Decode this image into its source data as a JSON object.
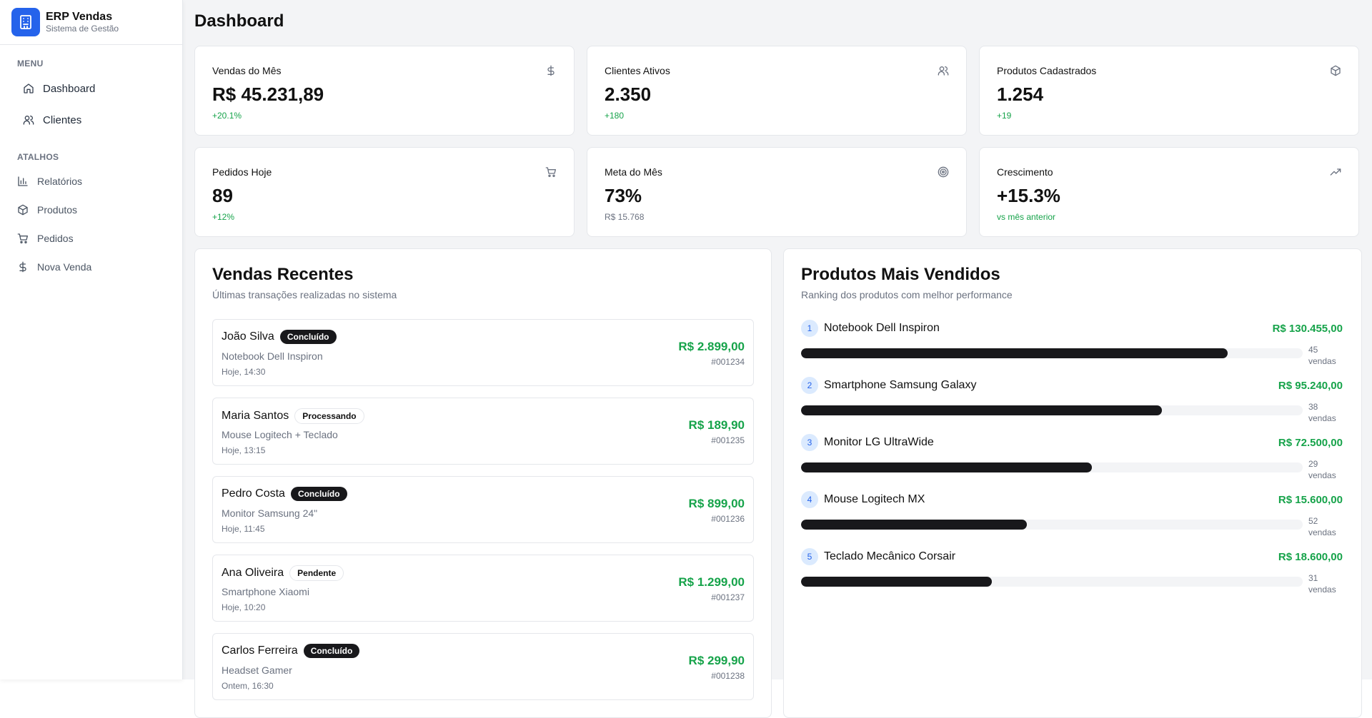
{
  "brand": {
    "title": "ERP Vendas",
    "subtitle": "Sistema de Gestão"
  },
  "sidebar": {
    "menu_label": "MENU",
    "menu_items": [
      {
        "label": "Dashboard",
        "icon": "home-icon"
      },
      {
        "label": "Clientes",
        "icon": "users-icon"
      }
    ],
    "shortcuts_label": "ATALHOS",
    "shortcut_items": [
      {
        "label": "Relatórios",
        "icon": "bar-chart-icon"
      },
      {
        "label": "Produtos",
        "icon": "box-icon"
      },
      {
        "label": "Pedidos",
        "icon": "cart-icon"
      },
      {
        "label": "Nova Venda",
        "icon": "dollar-icon"
      }
    ]
  },
  "page": {
    "title": "Dashboard"
  },
  "stats": [
    {
      "label": "Vendas do Mês",
      "value": "R$ 45.231,89",
      "change": "+20.1%",
      "icon": "dollar-icon"
    },
    {
      "label": "Clientes Ativos",
      "value": "2.350",
      "change": "+180",
      "icon": "users-icon"
    },
    {
      "label": "Produtos Cadastrados",
      "value": "1.254",
      "change": "+19",
      "icon": "box-icon"
    },
    {
      "label": "Pedidos Hoje",
      "value": "89",
      "change": "+12%",
      "icon": "cart-icon"
    },
    {
      "label": "Meta do Mês",
      "value": "73%",
      "change": "R$ 15.768",
      "icon": "target-icon"
    },
    {
      "label": "Crescimento",
      "value": "+15.3%",
      "change": "vs mês anterior",
      "icon": "trending-up-icon"
    }
  ],
  "recent_sales": {
    "title": "Vendas Recentes",
    "subtitle": "Últimas transações realizadas no sistema",
    "items": [
      {
        "customer": "João Silva",
        "status": "Concluído",
        "product": "Notebook Dell Inspiron",
        "time": "Hoje, 14:30",
        "amount": "R$ 2.899,00",
        "id": "#001234"
      },
      {
        "customer": "Maria Santos",
        "status": "Processando",
        "product": "Mouse Logitech + Teclado",
        "time": "Hoje, 13:15",
        "amount": "R$ 189,90",
        "id": "#001235"
      },
      {
        "customer": "Pedro Costa",
        "status": "Concluído",
        "product": "Monitor Samsung 24\"",
        "time": "Hoje, 11:45",
        "amount": "R$ 899,00",
        "id": "#001236"
      },
      {
        "customer": "Ana Oliveira",
        "status": "Pendente",
        "product": "Smartphone Xiaomi",
        "time": "Hoje, 10:20",
        "amount": "R$ 1.299,00",
        "id": "#001237"
      },
      {
        "customer": "Carlos Ferreira",
        "status": "Concluído",
        "product": "Headset Gamer",
        "time": "Ontem, 16:30",
        "amount": "R$ 299,90",
        "id": "#001238"
      }
    ]
  },
  "top_products": {
    "title": "Produtos Mais Vendidos",
    "subtitle": "Ranking dos produtos com melhor performance",
    "sales_unit": "vendas",
    "items": [
      {
        "rank": "1",
        "name": "Notebook Dell Inspiron",
        "revenue": "R$ 130.455,00",
        "sales": "45",
        "share": 0.85
      },
      {
        "rank": "2",
        "name": "Smartphone Samsung Galaxy",
        "revenue": "R$ 95.240,00",
        "sales": "38",
        "share": 0.72
      },
      {
        "rank": "3",
        "name": "Monitor LG UltraWide",
        "revenue": "R$ 72.500,00",
        "sales": "29",
        "share": 0.58
      },
      {
        "rank": "4",
        "name": "Mouse Logitech MX",
        "revenue": "R$ 15.600,00",
        "sales": "52",
        "share": 0.45
      },
      {
        "rank": "5",
        "name": "Teclado Mecânico Corsair",
        "revenue": "R$ 18.600,00",
        "sales": "31",
        "share": 0.38
      }
    ]
  },
  "colors": {
    "accent": "#2563eb",
    "positive": "#16a34a",
    "dark": "#18181b",
    "muted": "#6b7280"
  }
}
